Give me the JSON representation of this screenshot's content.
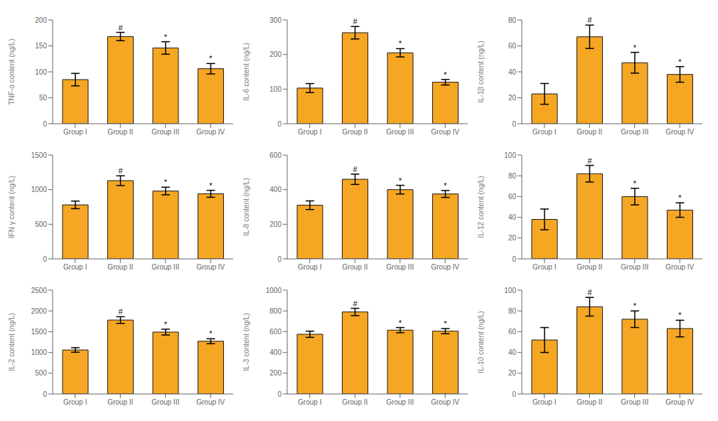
{
  "chart_data": [
    {
      "type": "bar",
      "ylabel": "TNF-α content (ng/L)",
      "categories": [
        "Group I",
        "Group II",
        "Group III",
        "Group IV"
      ],
      "values": [
        85,
        168,
        146,
        106
      ],
      "errors": [
        12,
        8,
        12,
        10
      ],
      "annotations": [
        null,
        "#",
        "*",
        "*"
      ],
      "color": "#F5A623",
      "ylim": [
        0,
        200
      ],
      "yticks": [
        0,
        50,
        100,
        150,
        200
      ],
      "grid": false
    },
    {
      "type": "bar",
      "ylabel": "IL-6 content (ng/L)",
      "categories": [
        "Group I",
        "Group II",
        "Group III",
        "Group IV"
      ],
      "values": [
        103,
        263,
        205,
        120
      ],
      "errors": [
        13,
        18,
        12,
        8
      ],
      "annotations": [
        null,
        "#",
        "*",
        "*"
      ],
      "color": "#F5A623",
      "ylim": [
        0,
        300
      ],
      "yticks": [
        0,
        100,
        200,
        300
      ],
      "grid": false
    },
    {
      "type": "bar",
      "ylabel": "IL-1β content (ng/L)",
      "categories": [
        "Group I",
        "Group II",
        "Group III",
        "Group IV"
      ],
      "values": [
        23,
        67,
        47,
        38
      ],
      "errors": [
        8,
        9,
        8,
        6
      ],
      "annotations": [
        null,
        "#",
        "*",
        "*"
      ],
      "color": "#F5A623",
      "ylim": [
        0,
        80
      ],
      "yticks": [
        0,
        20,
        40,
        60,
        80
      ],
      "grid": false
    },
    {
      "type": "bar",
      "ylabel": "IFN γ content (ng/L)",
      "categories": [
        "Group I",
        "Group II",
        "Group III",
        "Group IV"
      ],
      "values": [
        780,
        1130,
        980,
        940
      ],
      "errors": [
        55,
        70,
        55,
        50
      ],
      "annotations": [
        null,
        "#",
        "*",
        "*"
      ],
      "color": "#F5A623",
      "ylim": [
        0,
        1500
      ],
      "yticks": [
        0,
        500,
        1000,
        1500
      ],
      "grid": false
    },
    {
      "type": "bar",
      "ylabel": "IL-8 content (ng/L)",
      "categories": [
        "Group I",
        "Group II",
        "Group III",
        "Group IV"
      ],
      "values": [
        310,
        460,
        400,
        375
      ],
      "errors": [
        25,
        30,
        25,
        20
      ],
      "annotations": [
        null,
        "#",
        "*",
        "*"
      ],
      "color": "#F5A623",
      "ylim": [
        0,
        600
      ],
      "yticks": [
        0,
        200,
        400,
        600
      ],
      "grid": false
    },
    {
      "type": "bar",
      "ylabel": "IL-12 content (ng/L)",
      "categories": [
        "Group I",
        "Group II",
        "Group III",
        "Group IV"
      ],
      "values": [
        38,
        82,
        60,
        47
      ],
      "errors": [
        10,
        8,
        8,
        7
      ],
      "annotations": [
        null,
        "#",
        "*",
        "*"
      ],
      "color": "#F5A623",
      "ylim": [
        0,
        100
      ],
      "yticks": [
        0,
        20,
        40,
        60,
        80,
        100
      ],
      "grid": false
    },
    {
      "type": "bar",
      "ylabel": "IL-2 content (ng/L)",
      "categories": [
        "Group I",
        "Group II",
        "Group III",
        "Group IV"
      ],
      "values": [
        1060,
        1780,
        1490,
        1270
      ],
      "errors": [
        55,
        80,
        70,
        60
      ],
      "annotations": [
        null,
        "#",
        "*",
        "*"
      ],
      "color": "#F5A623",
      "ylim": [
        0,
        2500
      ],
      "yticks": [
        0,
        500,
        1000,
        1500,
        2000,
        2500
      ],
      "grid": false
    },
    {
      "type": "bar",
      "ylabel": "IL-3 content (ng/L)",
      "categories": [
        "Group I",
        "Group II",
        "Group III",
        "Group IV"
      ],
      "values": [
        575,
        790,
        615,
        605
      ],
      "errors": [
        30,
        35,
        25,
        25
      ],
      "annotations": [
        null,
        "#",
        "*",
        "*"
      ],
      "color": "#F5A623",
      "ylim": [
        0,
        1000
      ],
      "yticks": [
        0,
        200,
        400,
        600,
        800,
        1000
      ],
      "grid": false
    },
    {
      "type": "bar",
      "ylabel": "IL-10 content (ng/L)",
      "categories": [
        "Group I",
        "Group II",
        "Group III",
        "Group IV"
      ],
      "values": [
        52,
        84,
        72,
        63
      ],
      "errors": [
        12,
        9,
        8,
        8
      ],
      "annotations": [
        null,
        "#",
        "*",
        "*"
      ],
      "color": "#F5A623",
      "ylim": [
        0,
        100
      ],
      "yticks": [
        0,
        20,
        40,
        60,
        80,
        100
      ],
      "grid": false
    }
  ]
}
